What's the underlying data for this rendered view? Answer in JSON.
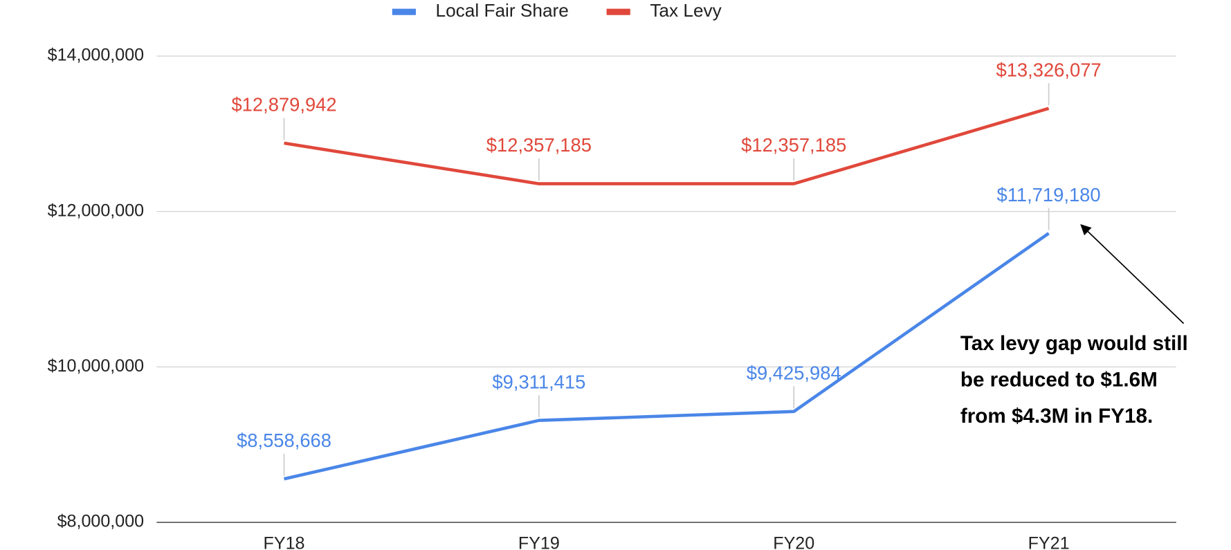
{
  "chart_data": {
    "type": "line",
    "categories": [
      "FY18",
      "FY19",
      "FY20",
      "FY21"
    ],
    "series": [
      {
        "name": "Local Fair Share",
        "color": "#4a86e8",
        "values": [
          8558668,
          9311415,
          9425984,
          11719180
        ],
        "value_labels": [
          "$8,558,668",
          "$9,311,415",
          "$9,425,984",
          "$11,719,180"
        ]
      },
      {
        "name": "Tax Levy",
        "color": "#e0483b",
        "values": [
          12879942,
          12357185,
          12357185,
          13326077
        ],
        "value_labels": [
          "$12,879,942",
          "$12,357,185",
          "$12,357,185",
          "$13,326,077"
        ]
      }
    ],
    "ylim": [
      8000000,
      14000000
    ],
    "yticks": [
      {
        "value": 8000000,
        "label": "$8,000,000"
      },
      {
        "value": 10000000,
        "label": "$10,000,000"
      },
      {
        "value": 12000000,
        "label": "$12,000,000"
      },
      {
        "value": 14000000,
        "label": "$14,000,000"
      }
    ],
    "grid": true,
    "legend": "top",
    "annotation": [
      "Tax levy gap would still",
      "be reduced to $1.6M",
      "from $4.3M in FY18."
    ]
  }
}
